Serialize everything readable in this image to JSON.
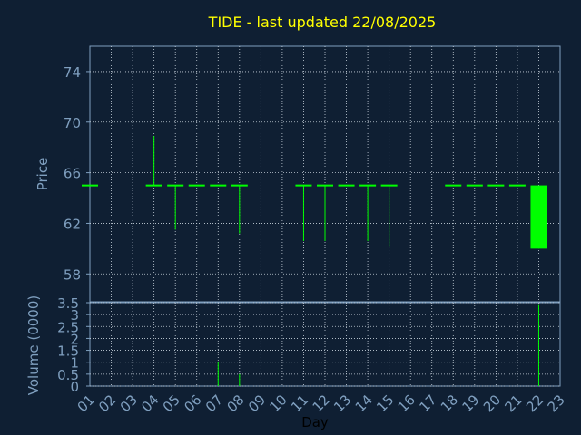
{
  "chart_data": [
    {
      "type": "candlestick",
      "title": "TIDE - last updated 22/08/2025",
      "ylabel": "Price",
      "ylim": [
        55.8,
        76
      ],
      "yticks": [
        58,
        62,
        66,
        70,
        74
      ],
      "x": [
        "01",
        "02",
        "03",
        "04",
        "05",
        "06",
        "07",
        "08",
        "09",
        "10",
        "11",
        "12",
        "13",
        "14",
        "15",
        "16",
        "17",
        "18",
        "19",
        "20",
        "21",
        "22",
        "23"
      ],
      "grid": true,
      "candles": [
        {
          "day": "01",
          "open": 65,
          "high": 65,
          "low": 65,
          "close": 65
        },
        {
          "day": "04",
          "open": 65,
          "high": 68.9,
          "low": 65,
          "close": 65
        },
        {
          "day": "05",
          "open": 65,
          "high": 65,
          "low": 61.5,
          "close": 65
        },
        {
          "day": "06",
          "open": 65,
          "high": 65,
          "low": 65,
          "close": 65
        },
        {
          "day": "07",
          "open": 65,
          "high": 65,
          "low": 65,
          "close": 65
        },
        {
          "day": "08",
          "open": 65,
          "high": 65,
          "low": 61.2,
          "close": 65
        },
        {
          "day": "11",
          "open": 65,
          "high": 65,
          "low": 60.6,
          "close": 65
        },
        {
          "day": "12",
          "open": 65,
          "high": 65,
          "low": 60.6,
          "close": 65
        },
        {
          "day": "13",
          "open": 65,
          "high": 65,
          "low": 65,
          "close": 65
        },
        {
          "day": "14",
          "open": 65,
          "high": 65,
          "low": 60.6,
          "close": 65
        },
        {
          "day": "15",
          "open": 65,
          "high": 65,
          "low": 60.2,
          "close": 65
        },
        {
          "day": "18",
          "open": 65,
          "high": 65,
          "low": 65,
          "close": 65
        },
        {
          "day": "19",
          "open": 65,
          "high": 65,
          "low": 65,
          "close": 65
        },
        {
          "day": "20",
          "open": 65,
          "high": 65,
          "low": 65,
          "close": 65
        },
        {
          "day": "21",
          "open": 65,
          "high": 65,
          "low": 65,
          "close": 65
        },
        {
          "day": "22",
          "open": 65,
          "high": 65,
          "low": 60,
          "close": 60
        }
      ]
    },
    {
      "type": "bar",
      "ylabel": "Volume (0000)",
      "xlabel": "Day",
      "ylim": [
        0,
        3.5
      ],
      "yticks": [
        "0",
        "0.5",
        "1",
        "1.5",
        "2",
        "2.5",
        "3",
        "3.5"
      ],
      "x": [
        "01",
        "02",
        "03",
        "04",
        "05",
        "06",
        "07",
        "08",
        "09",
        "10",
        "11",
        "12",
        "13",
        "14",
        "15",
        "16",
        "17",
        "18",
        "19",
        "20",
        "21",
        "22",
        "23"
      ],
      "grid": true,
      "bars": [
        {
          "day": "07",
          "value": 1.0
        },
        {
          "day": "08",
          "value": 0.5
        },
        {
          "day": "22",
          "value": 3.4
        }
      ]
    }
  ],
  "colors": {
    "background": "#0f1f33",
    "axis": "#7f9fbf",
    "grid": "#c8d2dc",
    "title": "#ffff00",
    "label": "#7f9fbf",
    "xlabel": "#000000",
    "candle": "#00ff00"
  }
}
